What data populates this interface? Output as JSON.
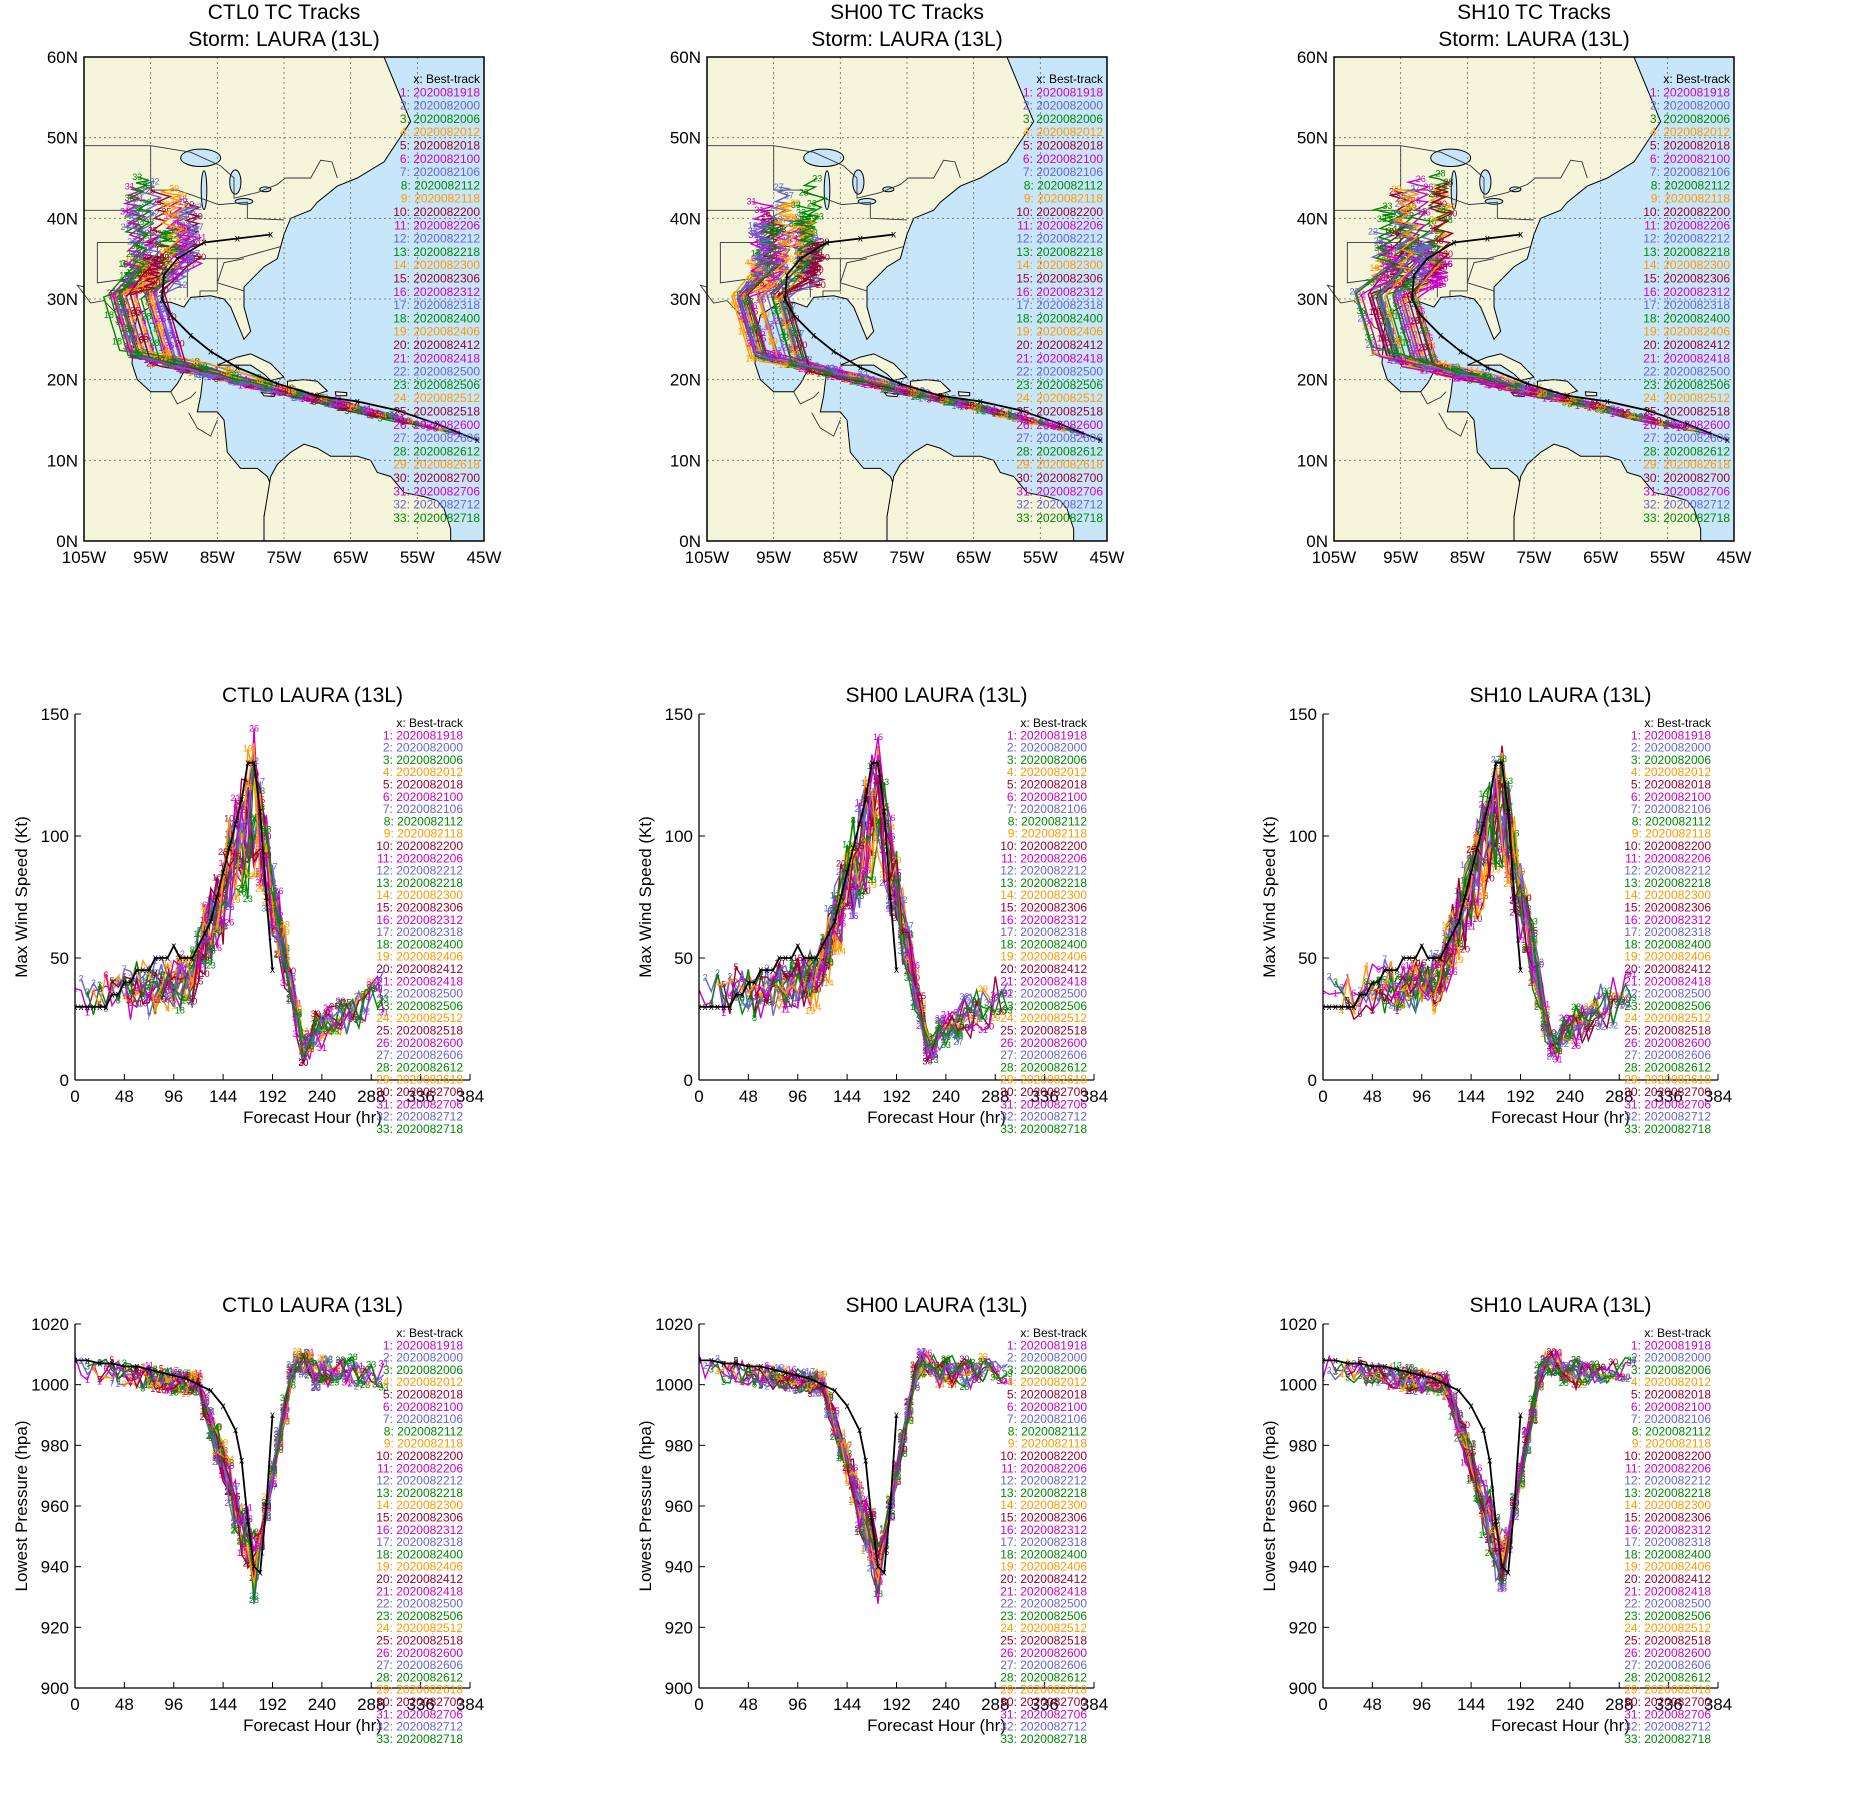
{
  "legend": {
    "header": "x: Best-track",
    "cycles": [
      "2020081918",
      "2020082000",
      "2020082006",
      "2020082012",
      "2020082018",
      "2020082100",
      "2020082106",
      "2020082112",
      "2020082118",
      "2020082200",
      "2020082206",
      "2020082212",
      "2020082218",
      "2020082300",
      "2020082306",
      "2020082312",
      "2020082318",
      "2020082400",
      "2020082406",
      "2020082412",
      "2020082418",
      "2020082500",
      "2020082506",
      "2020082512",
      "2020082518",
      "2020082600",
      "2020082606",
      "2020082612",
      "2020082618",
      "2020082700",
      "2020082706",
      "2020082712",
      "2020082718"
    ],
    "colors": [
      "#cc00cc",
      "#6666cc",
      "#008800",
      "#ff9900",
      "#990033",
      "#cc00cc",
      "#6666cc",
      "#008800",
      "#ff9900",
      "#990033",
      "#cc00cc",
      "#6666cc",
      "#008800",
      "#ff9900",
      "#990033",
      "#cc00cc",
      "#6666cc",
      "#008800",
      "#ff9900",
      "#990033",
      "#cc00cc",
      "#6666cc",
      "#008800",
      "#ff9900",
      "#990033",
      "#cc00cc",
      "#6666cc",
      "#008800",
      "#ff9900",
      "#990033",
      "#cc00cc",
      "#6666cc",
      "#008800"
    ]
  },
  "map_colors": {
    "ocean": "#c8e6fa",
    "land": "#f5f5dc",
    "coast": "#000000",
    "grid": "#666666"
  },
  "chart_data": [
    {
      "type": "map",
      "experiment": "CTL0",
      "title_line1": "CTL0 TC Tracks",
      "title_line2": "Storm: LAURA (13L)",
      "x_ticks": [
        "105W",
        "95W",
        "85W",
        "75W",
        "65W",
        "55W",
        "45W"
      ],
      "y_ticks": [
        "0N",
        "10N",
        "20N",
        "30N",
        "40N",
        "50N",
        "60N"
      ],
      "lon_range": [
        -105,
        -45
      ],
      "lat_range": [
        0,
        60
      ]
    },
    {
      "type": "map",
      "experiment": "SH00",
      "title_line1": "SH00 TC Tracks",
      "title_line2": "Storm: LAURA (13L)",
      "x_ticks": [
        "105W",
        "95W",
        "85W",
        "75W",
        "65W",
        "55W",
        "45W"
      ],
      "y_ticks": [
        "0N",
        "10N",
        "20N",
        "30N",
        "40N",
        "50N",
        "60N"
      ],
      "lon_range": [
        -105,
        -45
      ],
      "lat_range": [
        0,
        60
      ]
    },
    {
      "type": "map",
      "experiment": "SH10",
      "title_line1": "SH10 TC Tracks",
      "title_line2": "Storm: LAURA (13L)",
      "x_ticks": [
        "105W",
        "95W",
        "85W",
        "75W",
        "65W",
        "55W",
        "45W"
      ],
      "y_ticks": [
        "0N",
        "10N",
        "20N",
        "30N",
        "40N",
        "50N",
        "60N"
      ],
      "lon_range": [
        -105,
        -45
      ],
      "lat_range": [
        0,
        60
      ]
    },
    {
      "type": "line",
      "experiment": "CTL0",
      "title": "CTL0  LAURA (13L)",
      "xlabel": "Forecast Hour (hr)",
      "ylabel": "Max Wind Speed (Kt)",
      "xlim": [
        0,
        384
      ],
      "ylim": [
        0,
        150
      ],
      "x_ticks": [
        0,
        48,
        96,
        144,
        192,
        240,
        288,
        336,
        384
      ],
      "y_ticks": [
        0,
        50,
        100,
        150
      ],
      "best_track": {
        "x": [
          0,
          6,
          12,
          18,
          24,
          30,
          36,
          42,
          48,
          54,
          60,
          66,
          72,
          78,
          84,
          90,
          96,
          102,
          108,
          114,
          120,
          126,
          132,
          138,
          144,
          150,
          156,
          162,
          168,
          174,
          180,
          186,
          192
        ],
        "y": [
          30,
          30,
          30,
          30,
          30,
          30,
          35,
          35,
          40,
          40,
          45,
          45,
          45,
          50,
          50,
          50,
          55,
          50,
          50,
          50,
          55,
          60,
          65,
          75,
          85,
          95,
          105,
          115,
          130,
          130,
          110,
          75,
          45
        ]
      }
    },
    {
      "type": "line",
      "experiment": "SH00",
      "title": "SH00  LAURA (13L)",
      "xlabel": "Forecast Hour (hr)",
      "ylabel": "Max Wind Speed (Kt)",
      "xlim": [
        0,
        384
      ],
      "ylim": [
        0,
        150
      ],
      "x_ticks": [
        0,
        48,
        96,
        144,
        192,
        240,
        288,
        336,
        384
      ],
      "y_ticks": [
        0,
        50,
        100,
        150
      ],
      "best_track": {
        "x": [
          0,
          6,
          12,
          18,
          24,
          30,
          36,
          42,
          48,
          54,
          60,
          66,
          72,
          78,
          84,
          90,
          96,
          102,
          108,
          114,
          120,
          126,
          132,
          138,
          144,
          150,
          156,
          162,
          168,
          174,
          180,
          186,
          192
        ],
        "y": [
          30,
          30,
          30,
          30,
          30,
          30,
          35,
          35,
          40,
          40,
          45,
          45,
          45,
          50,
          50,
          50,
          55,
          50,
          50,
          50,
          55,
          60,
          65,
          75,
          85,
          95,
          105,
          115,
          130,
          130,
          110,
          75,
          45
        ]
      }
    },
    {
      "type": "line",
      "experiment": "SH10",
      "title": "SH10  LAURA (13L)",
      "xlabel": "Forecast Hour (hr)",
      "ylabel": "Max Wind Speed (Kt)",
      "xlim": [
        0,
        384
      ],
      "ylim": [
        0,
        150
      ],
      "x_ticks": [
        0,
        48,
        96,
        144,
        192,
        240,
        288,
        336,
        384
      ],
      "y_ticks": [
        0,
        50,
        100,
        150
      ],
      "best_track": {
        "x": [
          0,
          6,
          12,
          18,
          24,
          30,
          36,
          42,
          48,
          54,
          60,
          66,
          72,
          78,
          84,
          90,
          96,
          102,
          108,
          114,
          120,
          126,
          132,
          138,
          144,
          150,
          156,
          162,
          168,
          174,
          180,
          186,
          192
        ],
        "y": [
          30,
          30,
          30,
          30,
          30,
          30,
          35,
          35,
          40,
          40,
          45,
          45,
          45,
          50,
          50,
          50,
          55,
          50,
          50,
          50,
          55,
          60,
          65,
          75,
          85,
          95,
          105,
          115,
          130,
          130,
          110,
          75,
          45
        ]
      }
    },
    {
      "type": "line",
      "experiment": "CTL0",
      "title": "CTL0  LAURA (13L)",
      "xlabel": "Forecast Hour (hr)",
      "ylabel": "Lowest Pressure (hpa)",
      "xlim": [
        0,
        384
      ],
      "ylim": [
        900,
        1020
      ],
      "x_ticks": [
        0,
        48,
        96,
        144,
        192,
        240,
        288,
        336,
        384
      ],
      "y_ticks": [
        900,
        920,
        940,
        960,
        980,
        1000,
        1020
      ],
      "best_track": {
        "x": [
          0,
          12,
          24,
          36,
          48,
          60,
          72,
          84,
          96,
          108,
          120,
          132,
          144,
          156,
          162,
          168,
          174,
          180,
          186,
          192
        ],
        "y": [
          1008,
          1008,
          1007,
          1007,
          1006,
          1006,
          1005,
          1004,
          1003,
          1002,
          1000,
          998,
          993,
          985,
          975,
          955,
          940,
          938,
          960,
          990
        ]
      }
    },
    {
      "type": "line",
      "experiment": "SH00",
      "title": "SH00  LAURA (13L)",
      "xlabel": "Forecast Hour (hr)",
      "ylabel": "Lowest Pressure (hpa)",
      "xlim": [
        0,
        384
      ],
      "ylim": [
        900,
        1020
      ],
      "x_ticks": [
        0,
        48,
        96,
        144,
        192,
        240,
        288,
        336,
        384
      ],
      "y_ticks": [
        900,
        920,
        940,
        960,
        980,
        1000,
        1020
      ],
      "best_track": {
        "x": [
          0,
          12,
          24,
          36,
          48,
          60,
          72,
          84,
          96,
          108,
          120,
          132,
          144,
          156,
          162,
          168,
          174,
          180,
          186,
          192
        ],
        "y": [
          1008,
          1008,
          1007,
          1007,
          1006,
          1006,
          1005,
          1004,
          1003,
          1002,
          1000,
          998,
          993,
          985,
          975,
          955,
          940,
          938,
          960,
          990
        ]
      }
    },
    {
      "type": "line",
      "experiment": "SH10",
      "title": "SH10  LAURA (13L)",
      "xlabel": "Forecast Hour (hr)",
      "ylabel": "Lowest Pressure (hpa)",
      "xlim": [
        0,
        384
      ],
      "ylim": [
        900,
        1020
      ],
      "x_ticks": [
        0,
        48,
        96,
        144,
        192,
        240,
        288,
        336,
        384
      ],
      "y_ticks": [
        900,
        920,
        940,
        960,
        980,
        1000,
        1020
      ],
      "best_track": {
        "x": [
          0,
          12,
          24,
          36,
          48,
          60,
          72,
          84,
          96,
          108,
          120,
          132,
          144,
          156,
          162,
          168,
          174,
          180,
          186,
          192
        ],
        "y": [
          1008,
          1008,
          1007,
          1007,
          1006,
          1006,
          1005,
          1004,
          1003,
          1002,
          1000,
          998,
          993,
          985,
          975,
          955,
          940,
          938,
          960,
          990
        ]
      }
    }
  ]
}
